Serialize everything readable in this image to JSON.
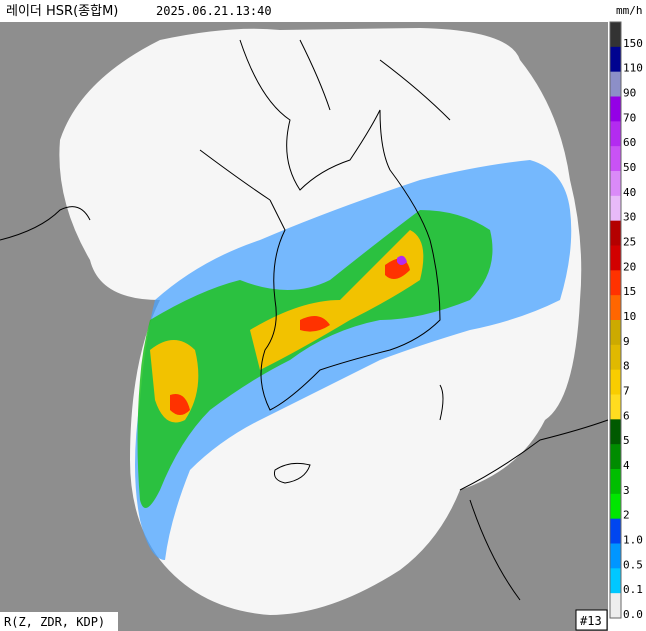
{
  "header": {
    "title": "레이더 HSR(종합M)",
    "timestamp": "2025.06.21.13:40"
  },
  "legend": {
    "unit": "mm/h",
    "items": [
      {
        "label": "150",
        "color": "#333333"
      },
      {
        "label": "110",
        "color": "#000390"
      },
      {
        "label": "90",
        "color": "#8c8fc8"
      },
      {
        "label": "70",
        "color": "#9400e6"
      },
      {
        "label": "60",
        "color": "#b32bf0"
      },
      {
        "label": "50",
        "color": "#c952f5"
      },
      {
        "label": "40",
        "color": "#da8af8"
      },
      {
        "label": "30",
        "color": "#e8baf9"
      },
      {
        "label": "25",
        "color": "#b40000"
      },
      {
        "label": "20",
        "color": "#d20000"
      },
      {
        "label": "15",
        "color": "#ff3200"
      },
      {
        "label": "10",
        "color": "#ff6600"
      },
      {
        "label": "9",
        "color": "#ccaa00"
      },
      {
        "label": "8",
        "color": "#e0b900"
      },
      {
        "label": "7",
        "color": "#f9cd00"
      },
      {
        "label": "6",
        "color": "#ffdc1f"
      },
      {
        "label": "5",
        "color": "#005a00"
      },
      {
        "label": "4",
        "color": "#008c00"
      },
      {
        "label": "3",
        "color": "#00be00"
      },
      {
        "label": "2",
        "color": "#00e600"
      },
      {
        "label": "1.0",
        "color": "#0046f0"
      },
      {
        "label": "0.5",
        "color": "#0096ff"
      },
      {
        "label": "0.1",
        "color": "#00c8ff"
      },
      {
        "label": "0.0",
        "color": "#eeeeee"
      }
    ]
  },
  "footer": {
    "variables": "R(Z, ZDR, KDP)",
    "tag": "#13"
  }
}
